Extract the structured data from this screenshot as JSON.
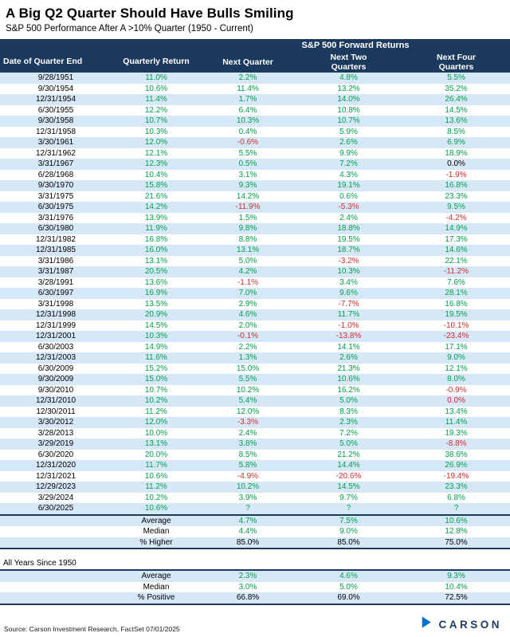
{
  "chart_data": {
    "type": "table",
    "title": "A Big Q2 Quarter Should Have Bulls Smiling",
    "subtitle": "S&P 500 Performance After A >10% Quarter (1950 - Current)",
    "group_header": "S&P 500 Forward Returns",
    "columns": [
      "Date of Quarter End",
      "Quarterly Return",
      "Next Quarter",
      "Next Two Quarters",
      "Next Four Quarters"
    ],
    "rows": [
      [
        "9/28/1951",
        "11.0%",
        "2.2%",
        "4.8%",
        "5.5%"
      ],
      [
        "9/30/1954",
        "10.6%",
        "11.4%",
        "13.2%",
        "35.2%"
      ],
      [
        "12/31/1954",
        "11.4%",
        "1.7%",
        "14.0%",
        "26.4%"
      ],
      [
        "6/30/1955",
        "12.2%",
        "6.4%",
        "10.8%",
        "14.5%"
      ],
      [
        "9/30/1958",
        "10.7%",
        "10.3%",
        "10.7%",
        "13.6%"
      ],
      [
        "12/31/1958",
        "10.3%",
        "0.4%",
        "5.9%",
        "8.5%"
      ],
      [
        "3/30/1961",
        "12.0%",
        "-0.6%",
        "2.6%",
        "6.9%"
      ],
      [
        "12/31/1962",
        "12.1%",
        "5.5%",
        "9.9%",
        "18.9%"
      ],
      [
        "3/31/1967",
        "12.3%",
        "0.5%",
        "7.2%",
        "0.0%"
      ],
      [
        "6/28/1968",
        "10.4%",
        "3.1%",
        "4.3%",
        "-1.9%"
      ],
      [
        "9/30/1970",
        "15.8%",
        "9.3%",
        "19.1%",
        "16.8%"
      ],
      [
        "3/31/1975",
        "21.6%",
        "14.2%",
        "0.6%",
        "23.3%"
      ],
      [
        "6/30/1975",
        "14.2%",
        "-11.9%",
        "-5.3%",
        "9.5%"
      ],
      [
        "3/31/1976",
        "13.9%",
        "1.5%",
        "2.4%",
        "-4.2%"
      ],
      [
        "6/30/1980",
        "11.9%",
        "9.8%",
        "18.8%",
        "14.9%"
      ],
      [
        "12/31/1982",
        "16.8%",
        "8.8%",
        "19.5%",
        "17.3%"
      ],
      [
        "12/31/1985",
        "16.0%",
        "13.1%",
        "18.7%",
        "14.6%"
      ],
      [
        "3/31/1986",
        "13.1%",
        "5.0%",
        "-3.2%",
        "22.1%"
      ],
      [
        "3/31/1987",
        "20.5%",
        "4.2%",
        "10.3%",
        "-11.2%"
      ],
      [
        "3/28/1991",
        "13.6%",
        "-1.1%",
        "3.4%",
        "7.6%"
      ],
      [
        "6/30/1997",
        "16.9%",
        "7.0%",
        "9.6%",
        "28.1%"
      ],
      [
        "3/31/1998",
        "13.5%",
        "2.9%",
        "-7.7%",
        "16.8%"
      ],
      [
        "12/31/1998",
        "20.9%",
        "4.6%",
        "11.7%",
        "19.5%"
      ],
      [
        "12/31/1999",
        "14.5%",
        "2.0%",
        "-1.0%",
        "-10.1%"
      ],
      [
        "12/31/2001",
        "10.3%",
        "-0.1%",
        "-13.8%",
        "-23.4%"
      ],
      [
        "6/30/2003",
        "14.9%",
        "2.2%",
        "14.1%",
        "17.1%"
      ],
      [
        "12/31/2003",
        "11.6%",
        "1.3%",
        "2.6%",
        "9.0%"
      ],
      [
        "6/30/2009",
        "15.2%",
        "15.0%",
        "21.3%",
        "12.1%"
      ],
      [
        "9/30/2009",
        "15.0%",
        "5.5%",
        "10.6%",
        "8.0%"
      ],
      [
        "9/30/2010",
        "10.7%",
        "10.2%",
        "16.2%",
        "-0.9%"
      ],
      [
        "12/31/2010",
        "10.2%",
        "5.4%",
        "5.0%",
        "0.0%"
      ],
      [
        "12/30/2011",
        "11.2%",
        "12.0%",
        "8.3%",
        "13.4%"
      ],
      [
        "3/30/2012",
        "12.0%",
        "-3.3%",
        "2.3%",
        "11.4%"
      ],
      [
        "3/28/2013",
        "10.0%",
        "2.4%",
        "7.2%",
        "19.3%"
      ],
      [
        "3/29/2019",
        "13.1%",
        "3.8%",
        "5.0%",
        "-8.8%"
      ],
      [
        "6/30/2020",
        "20.0%",
        "8.5%",
        "21.2%",
        "38.6%"
      ],
      [
        "12/31/2020",
        "11.7%",
        "5.8%",
        "14.4%",
        "26.9%"
      ],
      [
        "12/31/2021",
        "10.6%",
        "-4.9%",
        "-20.6%",
        "-19.4%"
      ],
      [
        "12/29/2023",
        "11.2%",
        "10.2%",
        "14.5%",
        "23.3%"
      ],
      [
        "3/29/2024",
        "10.2%",
        "3.9%",
        "9.7%",
        "6.8%"
      ],
      [
        "6/30/2025",
        "10.6%",
        "?",
        "?",
        "?"
      ]
    ],
    "cell_color_overrides": {
      "8": {
        "4": "black"
      },
      "30": {
        "4": "red"
      }
    },
    "summary": [
      {
        "label": "Average",
        "values": [
          "4.7%",
          "7.5%",
          "10.6%"
        ],
        "color": "green"
      },
      {
        "label": "Median",
        "values": [
          "4.4%",
          "9.0%",
          "12.8%"
        ],
        "color": "green"
      },
      {
        "label": "% Higher",
        "values": [
          "85.0%",
          "85.0%",
          "75.0%"
        ],
        "color": "black"
      }
    ],
    "all_years": {
      "label": "All Years Since 1950",
      "rows": [
        {
          "label": "Average",
          "values": [
            "2.3%",
            "4.6%",
            "9.3%"
          ],
          "color": "green"
        },
        {
          "label": "Median",
          "values": [
            "3.0%",
            "5.0%",
            "10.4%"
          ],
          "color": "green"
        },
        {
          "label": "% Positive",
          "values": [
            "66.8%",
            "69.0%",
            "72.5%"
          ],
          "color": "black"
        }
      ]
    },
    "colors": {
      "navy": "#1C3A5E",
      "row_blue": "#D6E8F7",
      "green": "#00A14B",
      "red": "#D12C2C",
      "logo_blue": "#0072CE"
    }
  },
  "source": "Source: Carson Investment Research, FactSet 07/01/2025",
  "logo": {
    "label": "CARSON"
  }
}
